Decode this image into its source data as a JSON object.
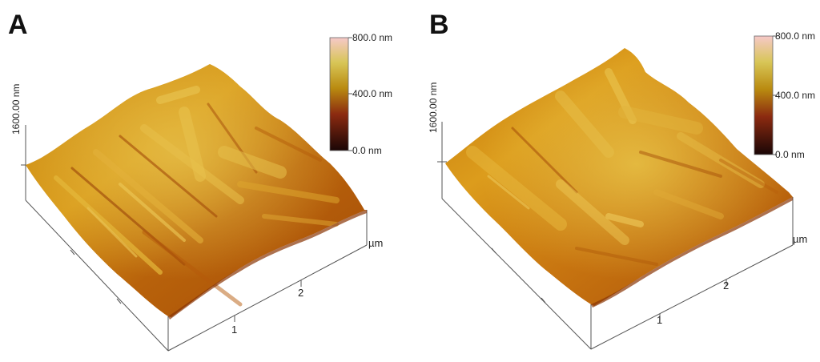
{
  "panels": [
    {
      "letter": "A",
      "colorbar": {
        "max_label": "800.0 nm",
        "mid_label": "400.0 nm",
        "min_label": "0.0 nm"
      },
      "z_axis_label": "1600.00 nm",
      "xy_unit": "µm",
      "x_ticks": [
        "1",
        "2"
      ]
    },
    {
      "letter": "B",
      "colorbar": {
        "max_label": "800.0 nm",
        "mid_label": "400.0 nm",
        "min_label": "0.0 nm"
      },
      "z_axis_label": "1600.00 nm",
      "xy_unit": "µm",
      "x_ticks": [
        "1",
        "2"
      ]
    }
  ],
  "colors": {
    "colorbar_top": "#f6c8c8",
    "colorbar_upper": "#cdb43a",
    "colorbar_mid": "#b8860b",
    "colorbar_lower": "#8b2a10",
    "colorbar_bottom": "#1a0606",
    "surface_dark": "#8e3a06",
    "surface_mid": "#c96f10",
    "surface_light": "#e0a020",
    "surface_highlight": "#e7c54a"
  }
}
